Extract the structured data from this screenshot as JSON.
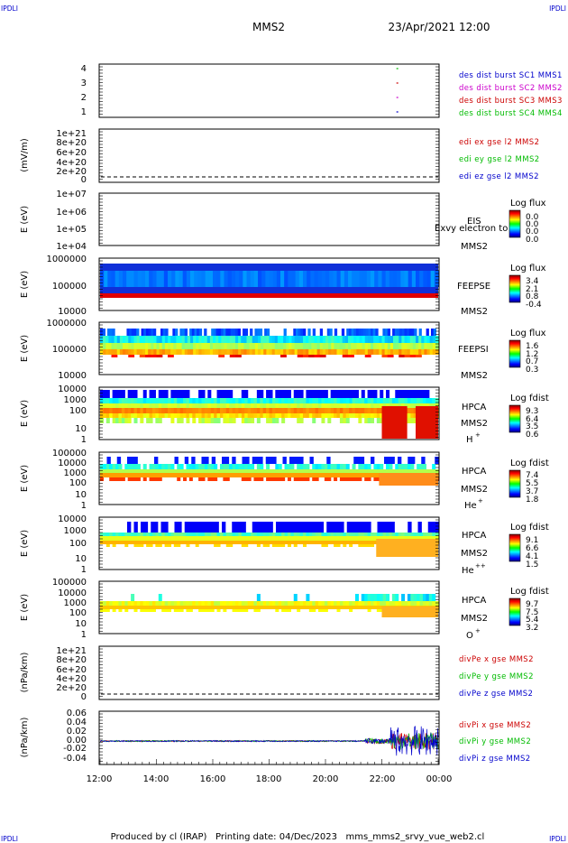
{
  "corner_labels": {
    "top_left": "IPDLI",
    "top_right": "IPDLI",
    "bottom_left": "IPDLI",
    "bottom_right": "IPDLI"
  },
  "header": {
    "spacecraft": "MMS2",
    "date_time": "23/Apr/2021 12:00"
  },
  "footer": {
    "text": "Produced by cl (IRAP)   Printing date: 04/Dec/2023   mms_mms2_srvy_vue_web2.cl"
  },
  "colors": {
    "c1": "#0000cc",
    "c2": "#cc00cc",
    "c3": "#cc0000",
    "c4": "#00bb00"
  },
  "chart_data": {
    "type": "multi-panel time series / spectrogram",
    "x_ticks": [
      "12:00",
      "14:00",
      "16:00",
      "18:00",
      "20:00",
      "22:00",
      "00:00"
    ],
    "x_range_hours": [
      12,
      24
    ],
    "panels": [
      {
        "id": "burst",
        "type": "timeline",
        "ylabel": "",
        "yticks": [
          "4",
          "3",
          "2",
          "1"
        ],
        "legend": [
          {
            "text": "des dist burst SC1 MMS1",
            "color": "#0000cc"
          },
          {
            "text": "des dist burst SC2 MMS2",
            "color": "#cc00cc"
          },
          {
            "text": "des dist burst SC3 MMS3",
            "color": "#cc0000"
          },
          {
            "text": "des dist burst SC4 MMS4",
            "color": "#00bb00"
          }
        ],
        "marks": [
          {
            "sc": 4,
            "time": 22.55,
            "color": "#00bb00"
          },
          {
            "sc": 3,
            "time": 22.55,
            "color": "#cc0000"
          },
          {
            "sc": 2,
            "time": 22.55,
            "color": "#cc00cc"
          },
          {
            "sc": 1,
            "time": 22.55,
            "color": "#0000cc"
          }
        ]
      },
      {
        "id": "edi",
        "type": "line",
        "ylabel": "(mV/m)",
        "yticks": [
          "1e+21",
          "8e+20",
          "6e+20",
          "4e+20",
          "2e+20",
          "0"
        ],
        "legend": [
          {
            "text": "edi ex gse l2 MMS2",
            "color": "#cc0000"
          },
          {
            "text": "edi ey gse l2 MMS2",
            "color": "#00bb00"
          },
          {
            "text": "edi ez gse l2 MMS2",
            "color": "#0000cc"
          }
        ]
      },
      {
        "id": "eis",
        "type": "spectrogram",
        "ylabel": "E (eV)",
        "yticks": [
          "1e+07",
          "1e+06",
          "1e+05",
          "1e+04"
        ],
        "instrument": "EIS",
        "spacecraft": "MMS2",
        "extra_label": "Exvy electron to",
        "colorbar_title": "Log flux",
        "colorbar_ticks": [
          "0.0",
          "0.0",
          "0.0",
          "0.0"
        ]
      },
      {
        "id": "feepse",
        "type": "spectrogram",
        "ylabel": "E (eV)",
        "yticks": [
          "1000000",
          "100000",
          "10000"
        ],
        "instrument": "FEEPSE",
        "spacecraft": "MMS2",
        "colorbar_title": "Log flux",
        "colorbar_ticks": [
          "3.4",
          "2.1",
          "0.8",
          "-0.4"
        ]
      },
      {
        "id": "feepsi",
        "type": "spectrogram",
        "ylabel": "E (eV)",
        "yticks": [
          "1000000",
          "100000",
          "10000"
        ],
        "instrument": "FEEPSI",
        "spacecraft": "MMS2",
        "colorbar_title": "Log flux",
        "colorbar_ticks": [
          "1.6",
          "1.2",
          "0.7",
          "0.3"
        ]
      },
      {
        "id": "hpca_h",
        "type": "spectrogram",
        "ylabel": "E (eV)",
        "yticks": [
          "10000",
          "1000",
          "100",
          "10",
          "1"
        ],
        "instrument": "HPCA",
        "spacecraft": "MMS2",
        "species": "H",
        "species_sup": "+",
        "colorbar_title": "Log fdist",
        "colorbar_ticks": [
          "9.3",
          "6.4",
          "3.5",
          "0.6"
        ]
      },
      {
        "id": "hpca_he",
        "type": "spectrogram",
        "ylabel": "E (eV)",
        "yticks": [
          "100000",
          "10000",
          "1000",
          "100",
          "10",
          "1"
        ],
        "instrument": "HPCA",
        "spacecraft": "MMS2",
        "species": "He",
        "species_sup": "+",
        "colorbar_title": "Log fdist",
        "colorbar_ticks": [
          "7.4",
          "5.5",
          "3.7",
          "1.8"
        ]
      },
      {
        "id": "hpca_hepp",
        "type": "spectrogram",
        "ylabel": "E (eV)",
        "yticks": [
          "10000",
          "1000",
          "100",
          "10",
          "1"
        ],
        "instrument": "HPCA",
        "spacecraft": "MMS2",
        "species": "He",
        "species_sup": "++",
        "colorbar_title": "Log fdist",
        "colorbar_ticks": [
          "9.1",
          "6.6",
          "4.1",
          "1.5"
        ]
      },
      {
        "id": "hpca_o",
        "type": "spectrogram",
        "ylabel": "E (eV)",
        "yticks": [
          "100000",
          "10000",
          "1000",
          "100",
          "10",
          "1"
        ],
        "instrument": "HPCA",
        "spacecraft": "MMS2",
        "species": "O",
        "species_sup": "+",
        "colorbar_title": "Log fdist",
        "colorbar_ticks": [
          "9.7",
          "7.5",
          "5.4",
          "3.2"
        ]
      },
      {
        "id": "divpe",
        "type": "line",
        "ylabel": "(nPa/km)",
        "yticks": [
          "1e+21",
          "8e+20",
          "6e+20",
          "4e+20",
          "2e+20",
          "0"
        ],
        "legend": [
          {
            "text": "divPe x gse MMS2",
            "color": "#cc0000"
          },
          {
            "text": "divPe y gse MMS2",
            "color": "#00bb00"
          },
          {
            "text": "divPe z gse MMS2",
            "color": "#0000cc"
          }
        ]
      },
      {
        "id": "divpi",
        "type": "line",
        "ylabel": "(nPa/km)",
        "yticks": [
          "0.06",
          "0.04",
          "0.02",
          "0.00",
          "-0.02",
          "-0.04"
        ],
        "ylim": [
          -0.05,
          0.065
        ],
        "legend": [
          {
            "text": "divPi x gse MMS2",
            "color": "#cc0000"
          },
          {
            "text": "divPi y gse MMS2",
            "color": "#00bb00"
          },
          {
            "text": "divPi z gse MMS2",
            "color": "#0000cc"
          }
        ]
      }
    ]
  }
}
